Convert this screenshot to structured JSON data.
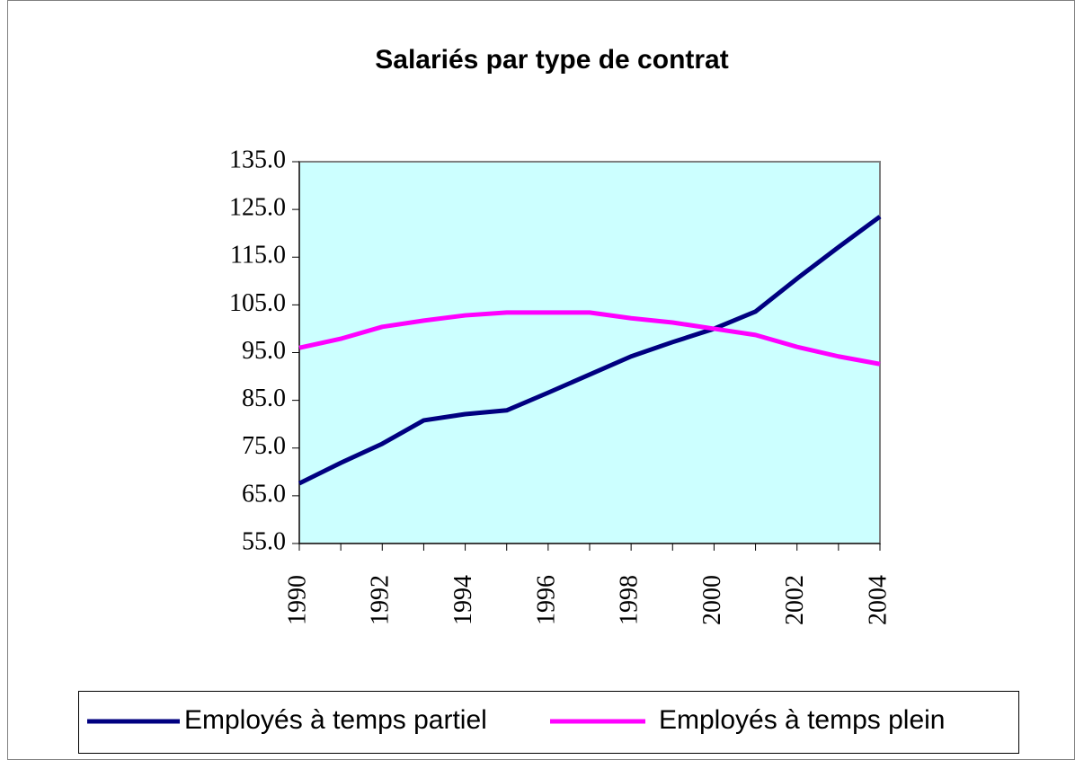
{
  "chart_data": {
    "type": "line",
    "title": "Salariés par type de contrat",
    "x": [
      1990,
      1991,
      1992,
      1993,
      1994,
      1995,
      1996,
      1997,
      1998,
      1999,
      2000,
      2001,
      2002,
      2003,
      2004
    ],
    "series": [
      {
        "name": "Employés à temps partiel",
        "color": "#000080",
        "values": [
          67.6,
          71.9,
          75.9,
          80.8,
          82.1,
          82.9,
          86.6,
          90.4,
          94.2,
          97.2,
          100.0,
          103.6,
          110.5,
          117.1,
          123.5
        ]
      },
      {
        "name": "Employés à temps plein",
        "color": "#ff00ff",
        "values": [
          96.0,
          97.9,
          100.4,
          101.7,
          102.8,
          103.4,
          103.4,
          103.4,
          102.2,
          101.3,
          100.0,
          98.7,
          96.2,
          94.2,
          92.6
        ]
      }
    ],
    "xlim": [
      1990,
      2004
    ],
    "xticks": [
      1990,
      1992,
      1994,
      1996,
      1998,
      2000,
      2002,
      2004
    ],
    "ylim": [
      55,
      135
    ],
    "yticks": [
      {
        "value": 55,
        "label": "55.0"
      },
      {
        "value": 65,
        "label": "65.0"
      },
      {
        "value": 75,
        "label": "75.0"
      },
      {
        "value": 85,
        "label": "85.0"
      },
      {
        "value": 95,
        "label": "95.0"
      },
      {
        "value": 105,
        "label": "105.0"
      },
      {
        "value": 115,
        "label": "115.0"
      },
      {
        "value": 125,
        "label": "125.0"
      },
      {
        "value": 135,
        "label": "135.0"
      }
    ],
    "plot_background": "#ccffff",
    "legend": "bottom"
  }
}
